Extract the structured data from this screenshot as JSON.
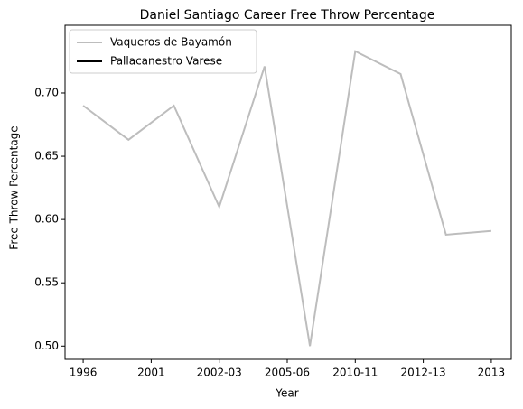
{
  "chart_data": {
    "type": "line",
    "title": "Daniel Santiago Career Free Throw Percentage",
    "xlabel": "Year",
    "ylabel": "Free Throw Percentage",
    "x": [
      0,
      1,
      2,
      3,
      4,
      5,
      6,
      7,
      8,
      9
    ],
    "series": [
      {
        "name": "Vaqueros de Bayamón",
        "color": "#bdbdbd",
        "values": [
          0.69,
          0.663,
          0.69,
          0.61,
          0.721,
          0.5,
          0.733,
          0.715,
          0.588,
          0.591
        ]
      },
      {
        "name": "Pallacanestro Varese",
        "color": "#000000",
        "values": [
          null,
          null,
          null,
          null,
          null,
          null,
          null,
          null,
          null,
          null
        ]
      }
    ],
    "xlim": [
      -0.4,
      9.44
    ],
    "xticks": [
      {
        "value": 0,
        "label": "1996"
      },
      {
        "value": 1.5,
        "label": "2001"
      },
      {
        "value": 3,
        "label": "2002-03"
      },
      {
        "value": 4.5,
        "label": "2005-06"
      },
      {
        "value": 6,
        "label": "2010-11"
      },
      {
        "value": 7.5,
        "label": "2012-13"
      },
      {
        "value": 9,
        "label": "2013"
      }
    ],
    "ylim": [
      0.4895,
      0.7535
    ],
    "yticks": [
      {
        "value": 0.5,
        "label": "0.50"
      },
      {
        "value": 0.55,
        "label": "0.55"
      },
      {
        "value": 0.6,
        "label": "0.60"
      },
      {
        "value": 0.65,
        "label": "0.65"
      },
      {
        "value": 0.7,
        "label": "0.70"
      }
    ],
    "legend": "upper left"
  }
}
